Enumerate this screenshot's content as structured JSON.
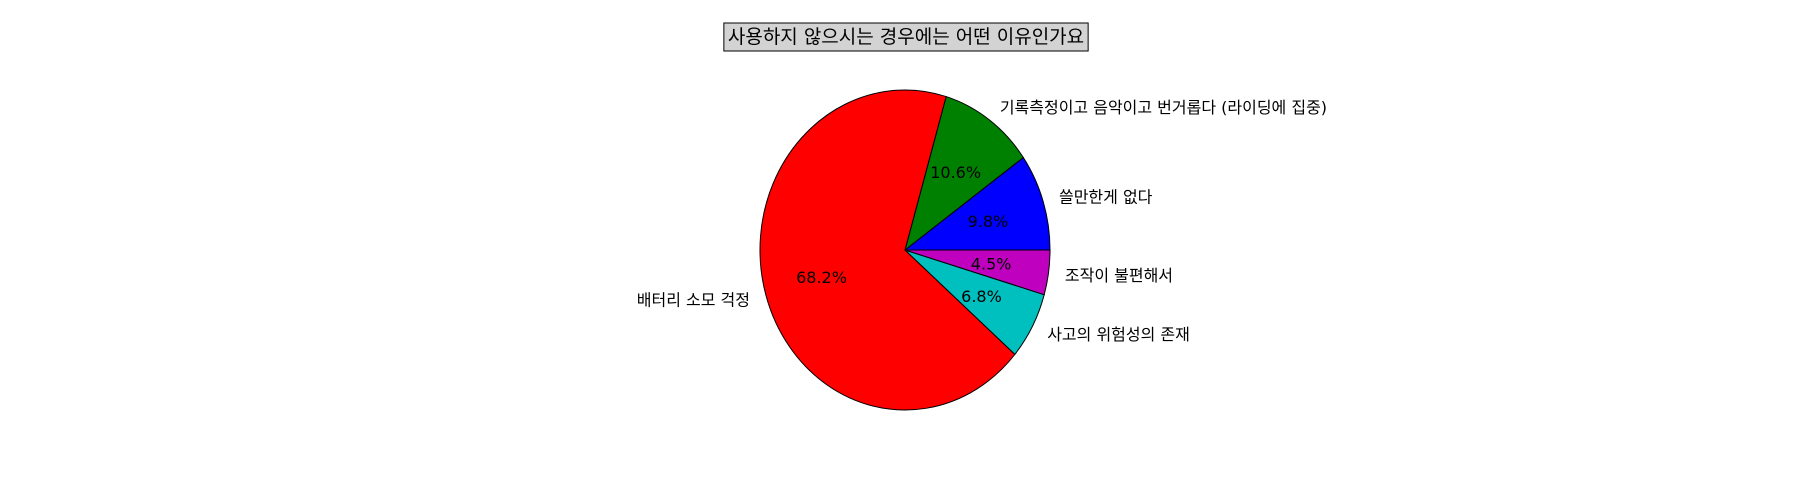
{
  "chart_data": {
    "type": "pie",
    "title": "사용하지 않으시는 경우에는 어떤 이유인가요",
    "slices": [
      {
        "label": "쓸만한게 없다",
        "value": 9.8,
        "pct_label": "9.8%",
        "color": "#0000ff"
      },
      {
        "label": "기록측정이고 음악이고 번거롭다 (라이딩에 집중)",
        "value": 10.6,
        "pct_label": "10.6%",
        "color": "#008000"
      },
      {
        "label": "배터리 소모 걱정",
        "value": 68.2,
        "pct_label": "68.2%",
        "color": "#ff0000"
      },
      {
        "label": "사고의 위험성의 존재",
        "value": 6.8,
        "pct_label": "6.8%",
        "color": "#00bfbf"
      },
      {
        "label": "조작이 불편해서",
        "value": 4.5,
        "pct_label": "4.5%",
        "color": "#bf00bf"
      }
    ],
    "start_angle_deg": 0,
    "direction": "counterclockwise",
    "legend": "none"
  }
}
